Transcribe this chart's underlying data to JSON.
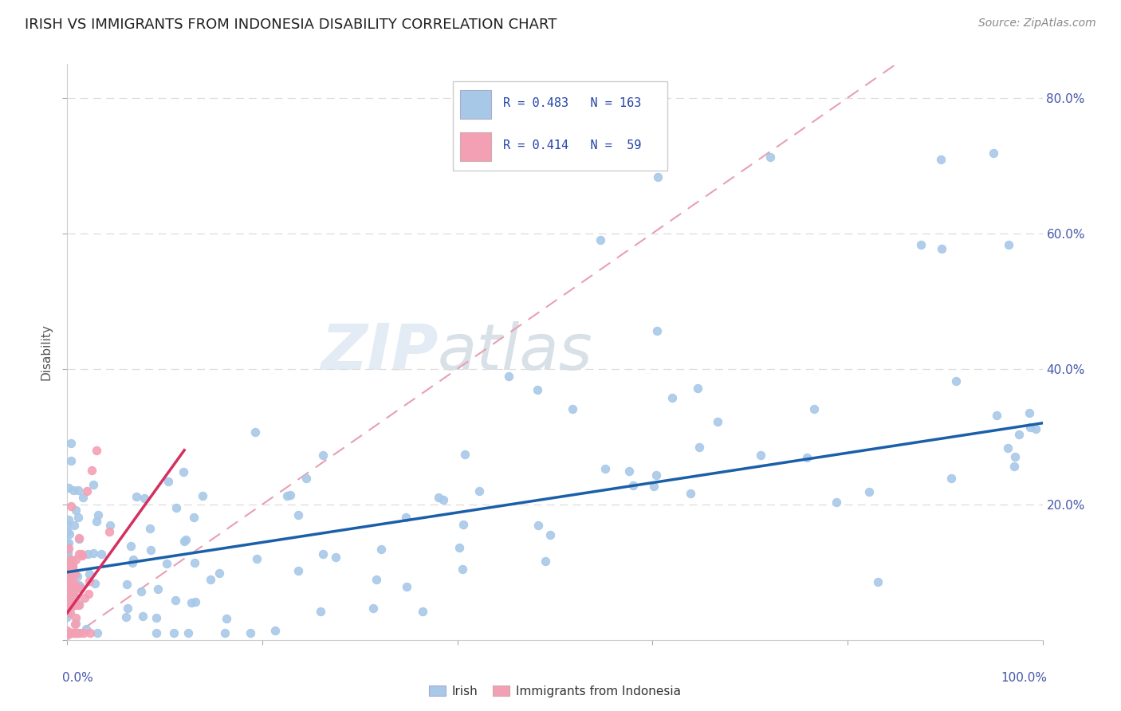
{
  "title": "IRISH VS IMMIGRANTS FROM INDONESIA DISABILITY CORRELATION CHART",
  "source": "Source: ZipAtlas.com",
  "ylabel": "Disability",
  "r_irish": 0.483,
  "n_irish": 163,
  "r_indonesia": 0.414,
  "n_indonesia": 59,
  "irish_color": "#a8c8e8",
  "indonesia_color": "#f4a0b4",
  "irish_line_color": "#1a5fa8",
  "indonesia_line_color": "#d43060",
  "ref_line_color": "#e8a0b0",
  "background_color": "#ffffff",
  "watermark_zip": "ZIP",
  "watermark_atlas": "atlas",
  "xlim": [
    0,
    1
  ],
  "ylim": [
    0,
    0.85
  ],
  "title_fontsize": 13,
  "source_fontsize": 10,
  "tick_color": "#4455aa",
  "ylabel_color": "#555555"
}
